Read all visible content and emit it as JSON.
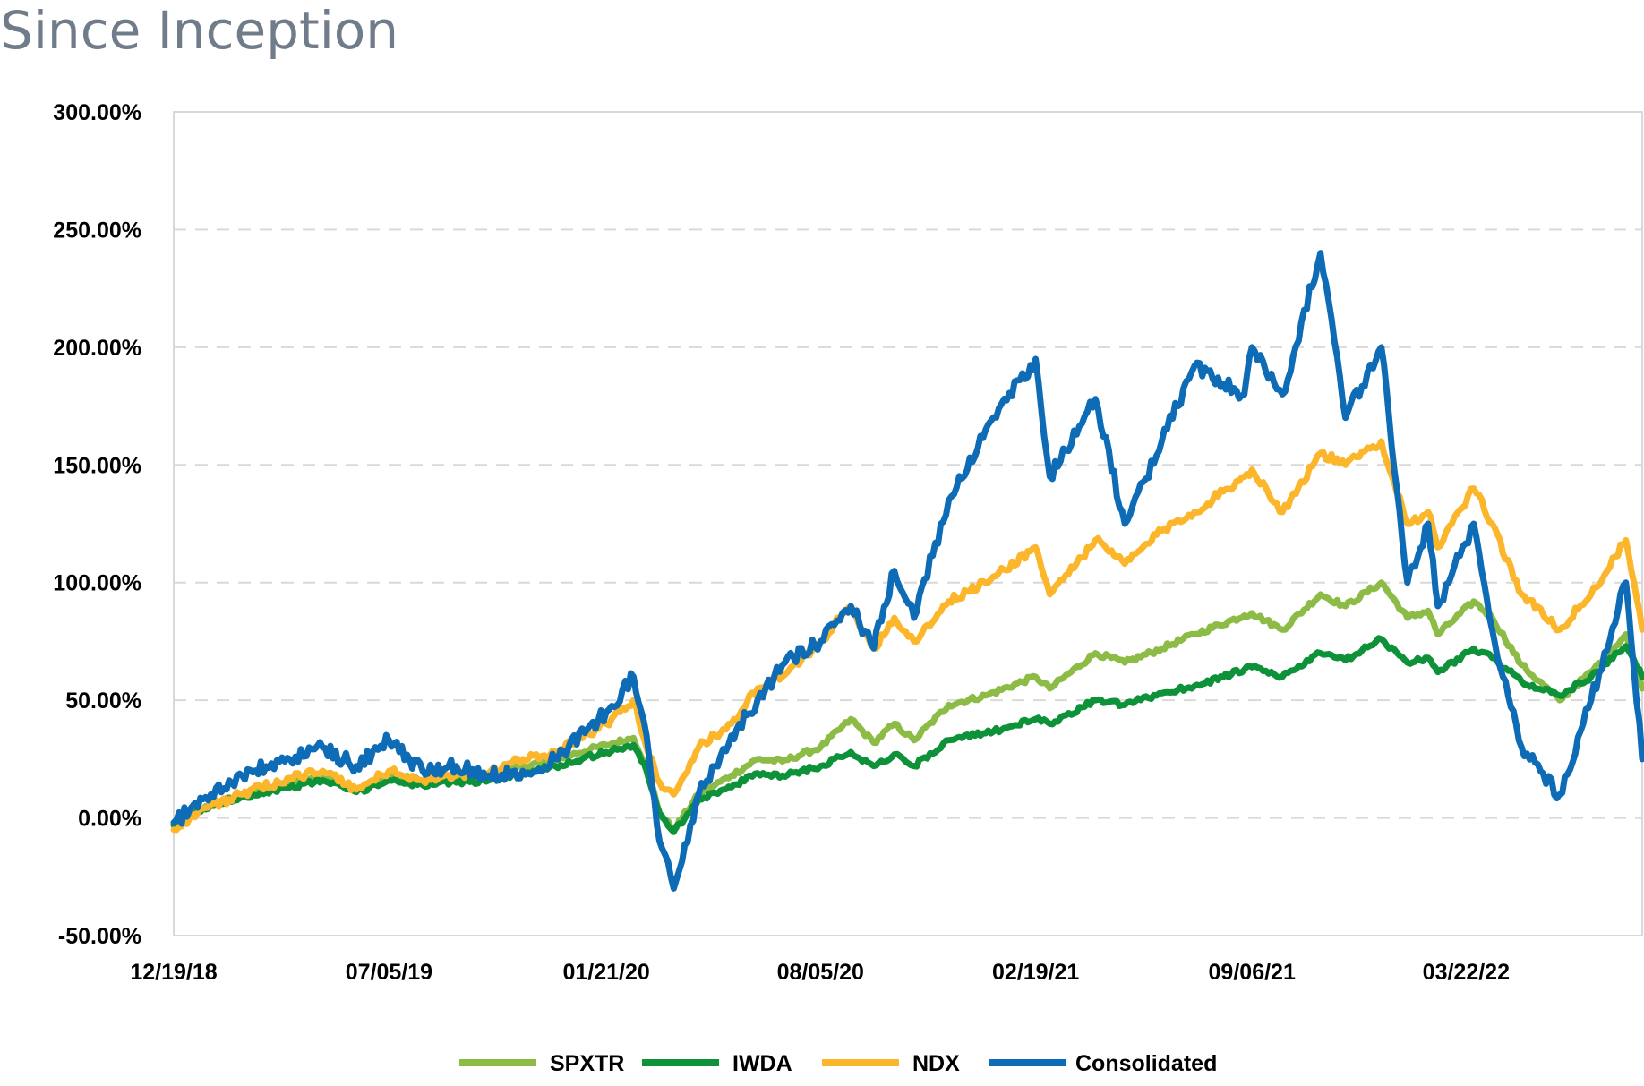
{
  "page": {
    "title": "Since Inception"
  },
  "chart_data": {
    "type": "line",
    "title": "",
    "xlabel": "",
    "ylabel": "",
    "x_range": [
      "12/19/18",
      "08/31/22"
    ],
    "ylim": [
      -50,
      300
    ],
    "y_ticks": [
      -50,
      0,
      50,
      100,
      150,
      200,
      250,
      300
    ],
    "y_tick_labels": [
      "-50.00%",
      "0.00%",
      "50.00%",
      "100.00%",
      "150.00%",
      "200.00%",
      "250.00%",
      "300.00%"
    ],
    "x_ticks": [
      "12/19/18",
      "07/05/19",
      "01/21/20",
      "08/05/20",
      "02/19/21",
      "09/06/21",
      "03/22/22"
    ],
    "grid": {
      "horizontal": true,
      "style": "dashed"
    },
    "legend": {
      "placement": "bottom"
    },
    "series": [
      {
        "name": "SPXTR",
        "color": "#8cbb46",
        "points": [
          [
            "12/19/18",
            -3
          ],
          [
            "01/15/19",
            4
          ],
          [
            "02/20/19",
            10
          ],
          [
            "04/05/19",
            15
          ],
          [
            "05/05/19",
            18
          ],
          [
            "06/05/19",
            12
          ],
          [
            "07/05/19",
            18
          ],
          [
            "08/05/19",
            16
          ],
          [
            "09/05/19",
            17
          ],
          [
            "10/05/19",
            18
          ],
          [
            "11/05/19",
            22
          ],
          [
            "12/05/19",
            25
          ],
          [
            "01/21/20",
            31
          ],
          [
            "02/15/20",
            34
          ],
          [
            "02/27/20",
            22
          ],
          [
            "03/10/20",
            2
          ],
          [
            "03/23/20",
            -5
          ],
          [
            "04/15/20",
            10
          ],
          [
            "05/15/20",
            18
          ],
          [
            "06/08/20",
            25
          ],
          [
            "07/01/20",
            24
          ],
          [
            "08/05/20",
            30
          ],
          [
            "09/02/20",
            42
          ],
          [
            "09/23/20",
            32
          ],
          [
            "10/12/20",
            40
          ],
          [
            "10/30/20",
            33
          ],
          [
            "12/01/20",
            48
          ],
          [
            "01/04/21",
            52
          ],
          [
            "02/19/21",
            60
          ],
          [
            "03/04/21",
            55
          ],
          [
            "04/15/21",
            70
          ],
          [
            "05/12/21",
            66
          ],
          [
            "06/15/21",
            72
          ],
          [
            "07/15/21",
            78
          ],
          [
            "08/30/21",
            86
          ],
          [
            "09/06/21",
            87
          ],
          [
            "10/04/21",
            80
          ],
          [
            "11/08/21",
            95
          ],
          [
            "12/01/21",
            90
          ],
          [
            "01/03/22",
            100
          ],
          [
            "01/27/22",
            85
          ],
          [
            "02/15/22",
            88
          ],
          [
            "02/24/22",
            78
          ],
          [
            "03/29/22",
            92
          ],
          [
            "04/15/22",
            85
          ],
          [
            "05/12/22",
            65
          ],
          [
            "06/16/22",
            50
          ],
          [
            "07/15/22",
            62
          ],
          [
            "08/16/22",
            78
          ],
          [
            "08/31/22",
            55
          ]
        ]
      },
      {
        "name": "IWDA",
        "color": "#0d923a",
        "points": [
          [
            "12/19/18",
            -3
          ],
          [
            "01/15/19",
            4
          ],
          [
            "02/20/19",
            9
          ],
          [
            "04/05/19",
            13
          ],
          [
            "05/05/19",
            16
          ],
          [
            "06/05/19",
            11
          ],
          [
            "07/05/19",
            16
          ],
          [
            "08/05/19",
            14
          ],
          [
            "09/05/19",
            15
          ],
          [
            "10/05/19",
            16
          ],
          [
            "11/05/19",
            19
          ],
          [
            "12/05/19",
            22
          ],
          [
            "01/21/20",
            28
          ],
          [
            "02/15/20",
            31
          ],
          [
            "02/27/20",
            20
          ],
          [
            "03/10/20",
            2
          ],
          [
            "03/23/20",
            -6
          ],
          [
            "04/15/20",
            8
          ],
          [
            "05/15/20",
            13
          ],
          [
            "06/08/20",
            19
          ],
          [
            "07/01/20",
            18
          ],
          [
            "08/05/20",
            22
          ],
          [
            "09/02/20",
            28
          ],
          [
            "09/23/20",
            22
          ],
          [
            "10/12/20",
            27
          ],
          [
            "10/30/20",
            22
          ],
          [
            "12/01/20",
            33
          ],
          [
            "01/04/21",
            36
          ],
          [
            "02/19/21",
            42
          ],
          [
            "03/04/21",
            40
          ],
          [
            "04/15/21",
            50
          ],
          [
            "05/12/21",
            48
          ],
          [
            "06/15/21",
            53
          ],
          [
            "07/15/21",
            56
          ],
          [
            "08/30/21",
            63
          ],
          [
            "09/06/21",
            64
          ],
          [
            "10/04/21",
            60
          ],
          [
            "11/08/21",
            70
          ],
          [
            "12/01/21",
            67
          ],
          [
            "01/03/22",
            76
          ],
          [
            "01/27/22",
            66
          ],
          [
            "02/15/22",
            68
          ],
          [
            "02/24/22",
            62
          ],
          [
            "03/29/22",
            72
          ],
          [
            "04/15/22",
            68
          ],
          [
            "05/12/22",
            58
          ],
          [
            "06/16/22",
            52
          ],
          [
            "07/15/22",
            60
          ],
          [
            "08/16/22",
            73
          ],
          [
            "08/31/22",
            60
          ]
        ]
      },
      {
        "name": "NDX",
        "color": "#fbb62b",
        "points": [
          [
            "12/19/18",
            -5
          ],
          [
            "01/15/19",
            4
          ],
          [
            "02/20/19",
            10
          ],
          [
            "04/05/19",
            17
          ],
          [
            "05/05/19",
            20
          ],
          [
            "06/05/19",
            12
          ],
          [
            "07/05/19",
            20
          ],
          [
            "08/05/19",
            16
          ],
          [
            "09/05/19",
            18
          ],
          [
            "10/05/19",
            19
          ],
          [
            "11/05/19",
            25
          ],
          [
            "12/05/19",
            28
          ],
          [
            "01/21/20",
            40
          ],
          [
            "02/15/20",
            50
          ],
          [
            "02/27/20",
            30
          ],
          [
            "03/10/20",
            15
          ],
          [
            "03/23/20",
            10
          ],
          [
            "04/15/20",
            30
          ],
          [
            "05/15/20",
            40
          ],
          [
            "06/08/20",
            55
          ],
          [
            "07/01/20",
            60
          ],
          [
            "08/05/20",
            75
          ],
          [
            "09/02/20",
            90
          ],
          [
            "09/23/20",
            72
          ],
          [
            "10/12/20",
            85
          ],
          [
            "10/30/20",
            75
          ],
          [
            "12/01/20",
            92
          ],
          [
            "01/04/21",
            100
          ],
          [
            "02/19/21",
            115
          ],
          [
            "03/04/21",
            95
          ],
          [
            "04/15/21",
            118
          ],
          [
            "05/12/21",
            108
          ],
          [
            "06/15/21",
            122
          ],
          [
            "07/15/21",
            130
          ],
          [
            "08/30/21",
            145
          ],
          [
            "09/06/21",
            148
          ],
          [
            "10/04/21",
            130
          ],
          [
            "11/08/21",
            155
          ],
          [
            "12/01/21",
            150
          ],
          [
            "01/03/22",
            160
          ],
          [
            "01/27/22",
            125
          ],
          [
            "02/15/22",
            130
          ],
          [
            "02/24/22",
            115
          ],
          [
            "03/29/22",
            140
          ],
          [
            "04/15/22",
            125
          ],
          [
            "05/12/22",
            95
          ],
          [
            "06/16/22",
            80
          ],
          [
            "07/15/22",
            95
          ],
          [
            "08/16/22",
            118
          ],
          [
            "08/31/22",
            80
          ]
        ]
      },
      {
        "name": "Consolidated",
        "color": "#0d6cb5",
        "points": [
          [
            "12/19/18",
            -2
          ],
          [
            "01/15/19",
            8
          ],
          [
            "02/20/19",
            18
          ],
          [
            "04/05/19",
            25
          ],
          [
            "05/05/19",
            30
          ],
          [
            "06/05/19",
            22
          ],
          [
            "07/05/19",
            33
          ],
          [
            "08/05/19",
            20
          ],
          [
            "09/05/19",
            22
          ],
          [
            "10/05/19",
            18
          ],
          [
            "11/05/19",
            20
          ],
          [
            "12/05/19",
            25
          ],
          [
            "01/21/20",
            45
          ],
          [
            "02/15/20",
            60
          ],
          [
            "02/27/20",
            35
          ],
          [
            "03/10/20",
            -10
          ],
          [
            "03/23/20",
            -30
          ],
          [
            "04/15/20",
            10
          ],
          [
            "05/15/20",
            35
          ],
          [
            "06/08/20",
            50
          ],
          [
            "07/01/20",
            65
          ],
          [
            "08/05/20",
            75
          ],
          [
            "09/02/20",
            90
          ],
          [
            "09/23/20",
            72
          ],
          [
            "10/12/20",
            105
          ],
          [
            "10/30/20",
            85
          ],
          [
            "12/01/20",
            135
          ],
          [
            "01/04/21",
            165
          ],
          [
            "02/19/21",
            195
          ],
          [
            "03/04/21",
            145
          ],
          [
            "04/15/21",
            178
          ],
          [
            "05/12/21",
            125
          ],
          [
            "06/15/21",
            160
          ],
          [
            "07/15/21",
            192
          ],
          [
            "08/30/21",
            180
          ],
          [
            "09/06/21",
            200
          ],
          [
            "10/04/21",
            180
          ],
          [
            "11/08/21",
            240
          ],
          [
            "12/01/21",
            170
          ],
          [
            "01/03/22",
            200
          ],
          [
            "01/27/22",
            100
          ],
          [
            "02/15/22",
            125
          ],
          [
            "02/24/22",
            90
          ],
          [
            "03/29/22",
            125
          ],
          [
            "04/15/22",
            80
          ],
          [
            "05/12/22",
            30
          ],
          [
            "06/16/22",
            10
          ],
          [
            "07/15/22",
            50
          ],
          [
            "08/16/22",
            100
          ],
          [
            "08/31/22",
            25
          ]
        ]
      }
    ]
  }
}
